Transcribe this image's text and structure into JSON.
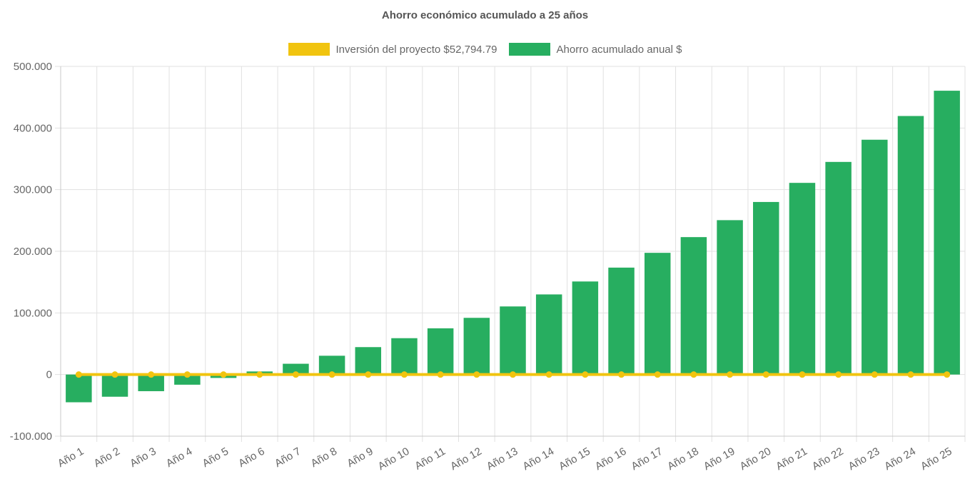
{
  "chart_data": {
    "type": "bar",
    "title": "Ahorro económico acumulado a 25 años",
    "categories": [
      "Año 1",
      "Año 2",
      "Año 3",
      "Año 4",
      "Año 5",
      "Año 6",
      "Año 7",
      "Año 8",
      "Año 9",
      "Año 10",
      "Año 11",
      "Año 12",
      "Año 13",
      "Año 14",
      "Año 15",
      "Año 16",
      "Año 17",
      "Año 18",
      "Año 19",
      "Año 20",
      "Año 21",
      "Año 22",
      "Año 23",
      "Año 24",
      "Año 25"
    ],
    "series": [
      {
        "name": "Inversión del proyecto $52,794.79",
        "type": "line",
        "color": "#F1C40F",
        "values": [
          0,
          0,
          0,
          0,
          0,
          0,
          0,
          0,
          0,
          0,
          0,
          0,
          0,
          0,
          0,
          0,
          0,
          0,
          0,
          0,
          0,
          0,
          0,
          0,
          0
        ]
      },
      {
        "name": "Ahorro acumulado anual $",
        "type": "bar",
        "color": "#27AE60",
        "values": [
          -45000,
          -36000,
          -27000,
          -16500,
          -5500,
          5000,
          17500,
          30500,
          44500,
          59000,
          75000,
          92000,
          110500,
          130000,
          151000,
          173500,
          197500,
          223000,
          250500,
          280000,
          311000,
          345000,
          381000,
          419500,
          460500
        ]
      }
    ],
    "ylim": [
      -100000,
      500000
    ],
    "yticks": [
      -100000,
      0,
      100000,
      200000,
      300000,
      400000,
      500000
    ],
    "ytick_labels": [
      "-100.000",
      "0",
      "100.000",
      "200.000",
      "300.000",
      "400.000",
      "500.000"
    ],
    "xlabel": "",
    "ylabel": "",
    "grid": true,
    "legend_position": "top"
  }
}
